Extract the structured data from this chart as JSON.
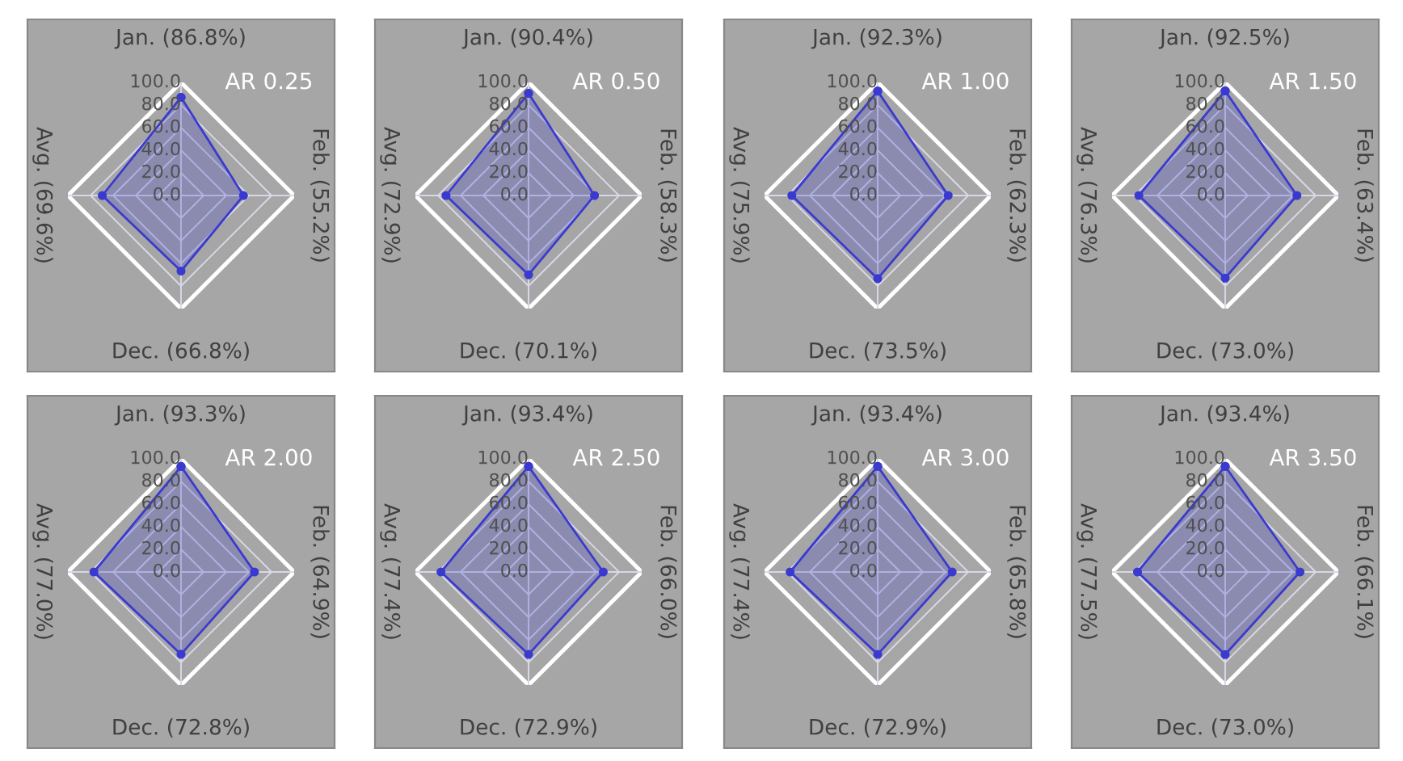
{
  "chart_data": [
    {
      "type": "radar",
      "title": "AR 0.25",
      "categories": [
        "Jan. (86.8%)",
        "Feb. (55.2%)",
        "Dec. (66.8%)",
        "Avg. (69.6%)"
      ],
      "series": [
        {
          "color": "#3a3ad0",
          "values": [
            86.8,
            55.2,
            66.8,
            69.6
          ]
        }
      ],
      "ylim": [
        0,
        100
      ],
      "yticks": [
        {
          "value": 0,
          "label": "0.0"
        },
        {
          "value": 20,
          "label": "20.0"
        },
        {
          "value": 40,
          "label": "40.0"
        },
        {
          "value": 60,
          "label": "60.0"
        },
        {
          "value": 80,
          "label": "80.0"
        },
        {
          "value": 100,
          "label": "100.0"
        }
      ],
      "marker": "circle",
      "grid": true
    },
    {
      "type": "radar",
      "title": "AR 0.50",
      "categories": [
        "Jan. (90.4%)",
        "Feb. (58.3%)",
        "Dec. (70.1%)",
        "Avg. (72.9%)"
      ],
      "series": [
        {
          "color": "#3a3ad0",
          "values": [
            90.4,
            58.3,
            70.1,
            72.9
          ]
        }
      ],
      "ylim": [
        0,
        100
      ],
      "yticks": [
        {
          "value": 0,
          "label": "0.0"
        },
        {
          "value": 20,
          "label": "20.0"
        },
        {
          "value": 40,
          "label": "40.0"
        },
        {
          "value": 60,
          "label": "60.0"
        },
        {
          "value": 80,
          "label": "80.0"
        },
        {
          "value": 100,
          "label": "100.0"
        }
      ],
      "marker": "circle",
      "grid": true
    },
    {
      "type": "radar",
      "title": "AR 1.00",
      "categories": [
        "Jan. (92.3%)",
        "Feb. (62.3%)",
        "Dec. (73.5%)",
        "Avg. (75.9%)"
      ],
      "series": [
        {
          "color": "#3a3ad0",
          "values": [
            92.3,
            62.3,
            73.5,
            75.9
          ]
        }
      ],
      "ylim": [
        0,
        100
      ],
      "yticks": [
        {
          "value": 0,
          "label": "0.0"
        },
        {
          "value": 20,
          "label": "20.0"
        },
        {
          "value": 40,
          "label": "40.0"
        },
        {
          "value": 60,
          "label": "60.0"
        },
        {
          "value": 80,
          "label": "80.0"
        },
        {
          "value": 100,
          "label": "100.0"
        }
      ],
      "marker": "circle",
      "grid": true
    },
    {
      "type": "radar",
      "title": "AR 1.50",
      "categories": [
        "Jan. (92.5%)",
        "Feb. (63.4%)",
        "Dec. (73.0%)",
        "Avg. (76.3%)"
      ],
      "series": [
        {
          "color": "#3a3ad0",
          "values": [
            92.5,
            63.4,
            73.0,
            76.3
          ]
        }
      ],
      "ylim": [
        0,
        100
      ],
      "yticks": [
        {
          "value": 0,
          "label": "0.0"
        },
        {
          "value": 20,
          "label": "20.0"
        },
        {
          "value": 40,
          "label": "40.0"
        },
        {
          "value": 60,
          "label": "60.0"
        },
        {
          "value": 80,
          "label": "80.0"
        },
        {
          "value": 100,
          "label": "100.0"
        }
      ],
      "marker": "circle",
      "grid": true
    },
    {
      "type": "radar",
      "title": "AR 2.00",
      "categories": [
        "Jan. (93.3%)",
        "Feb. (64.9%)",
        "Dec. (72.8%)",
        "Avg. (77.0%)"
      ],
      "series": [
        {
          "color": "#3a3ad0",
          "values": [
            93.3,
            64.9,
            72.8,
            77.0
          ]
        }
      ],
      "ylim": [
        0,
        100
      ],
      "yticks": [
        {
          "value": 0,
          "label": "0.0"
        },
        {
          "value": 20,
          "label": "20.0"
        },
        {
          "value": 40,
          "label": "40.0"
        },
        {
          "value": 60,
          "label": "60.0"
        },
        {
          "value": 80,
          "label": "80.0"
        },
        {
          "value": 100,
          "label": "100.0"
        }
      ],
      "marker": "circle",
      "grid": true
    },
    {
      "type": "radar",
      "title": "AR 2.50",
      "categories": [
        "Jan. (93.4%)",
        "Feb. (66.0%)",
        "Dec. (72.9%)",
        "Avg. (77.4%)"
      ],
      "series": [
        {
          "color": "#3a3ad0",
          "values": [
            93.4,
            66.0,
            72.9,
            77.4
          ]
        }
      ],
      "ylim": [
        0,
        100
      ],
      "yticks": [
        {
          "value": 0,
          "label": "0.0"
        },
        {
          "value": 20,
          "label": "20.0"
        },
        {
          "value": 40,
          "label": "40.0"
        },
        {
          "value": 60,
          "label": "60.0"
        },
        {
          "value": 80,
          "label": "80.0"
        },
        {
          "value": 100,
          "label": "100.0"
        }
      ],
      "marker": "circle",
      "grid": true
    },
    {
      "type": "radar",
      "title": "AR 3.00",
      "categories": [
        "Jan. (93.4%)",
        "Feb. (65.8%)",
        "Dec. (72.9%)",
        "Avg. (77.4%)"
      ],
      "series": [
        {
          "color": "#3a3ad0",
          "values": [
            93.4,
            65.8,
            72.9,
            77.4
          ]
        }
      ],
      "ylim": [
        0,
        100
      ],
      "yticks": [
        {
          "value": 0,
          "label": "0.0"
        },
        {
          "value": 20,
          "label": "20.0"
        },
        {
          "value": 40,
          "label": "40.0"
        },
        {
          "value": 60,
          "label": "60.0"
        },
        {
          "value": 80,
          "label": "80.0"
        },
        {
          "value": 100,
          "label": "100.0"
        }
      ],
      "marker": "circle",
      "grid": true
    },
    {
      "type": "radar",
      "title": "AR 3.50",
      "categories": [
        "Jan. (93.4%)",
        "Feb. (66.1%)",
        "Dec. (73.0%)",
        "Avg. (77.5%)"
      ],
      "series": [
        {
          "color": "#3a3ad0",
          "values": [
            93.4,
            66.1,
            73.0,
            77.5
          ]
        }
      ],
      "ylim": [
        0,
        100
      ],
      "yticks": [
        {
          "value": 0,
          "label": "0.0"
        },
        {
          "value": 20,
          "label": "20.0"
        },
        {
          "value": 40,
          "label": "40.0"
        },
        {
          "value": 60,
          "label": "60.0"
        },
        {
          "value": 80,
          "label": "80.0"
        },
        {
          "value": 100,
          "label": "100.0"
        }
      ],
      "marker": "circle",
      "grid": true
    }
  ]
}
